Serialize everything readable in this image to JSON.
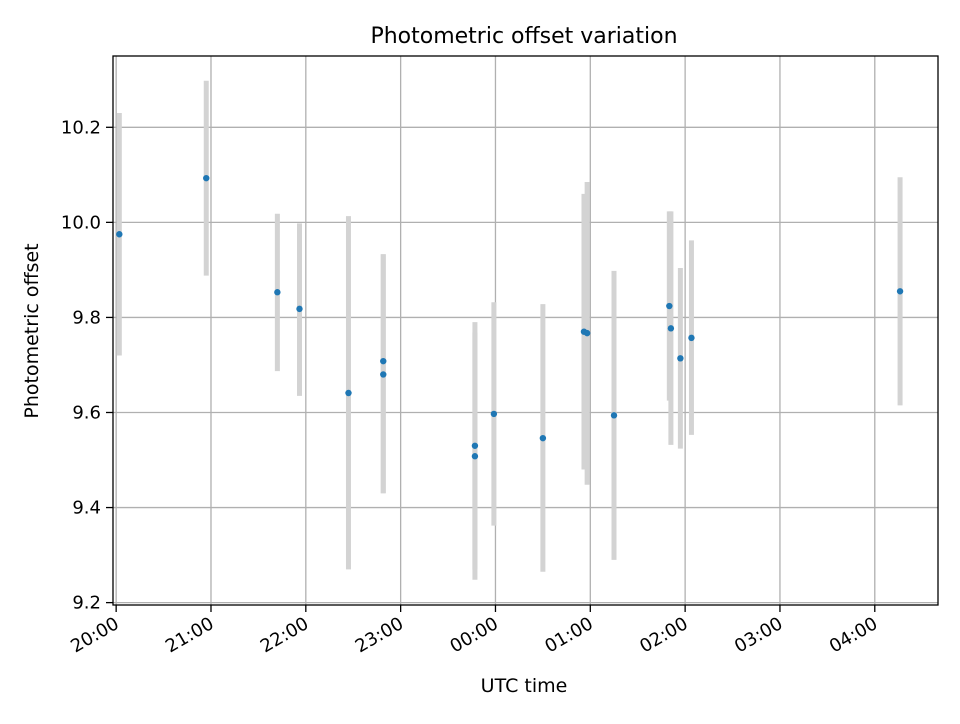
{
  "chart_data": {
    "type": "scatter",
    "title": "Photometric offset variation",
    "xlabel": "UTC time",
    "ylabel": "Photometric offset",
    "x_tick_labels": [
      "20:00",
      "21:00",
      "22:00",
      "23:00",
      "00:00",
      "01:00",
      "02:00",
      "03:00",
      "04:00"
    ],
    "y_tick_labels": [
      "9.2",
      "9.4",
      "9.6",
      "9.8",
      "10.0",
      "10.2"
    ],
    "xlim": [
      "19:58",
      "04:40"
    ],
    "ylim": [
      9.195,
      10.35
    ],
    "grid": true,
    "colors": {
      "point": "#1f77b4",
      "errorbar": "#d3d3d3",
      "grid": "#b0b0b0"
    },
    "points": [
      {
        "x": "20:02",
        "y": 9.975,
        "yerr_low": 9.72,
        "yerr_high": 10.23
      },
      {
        "x": "20:57",
        "y": 10.093,
        "yerr_low": 9.888,
        "yerr_high": 10.298
      },
      {
        "x": "21:42",
        "y": 9.853,
        "yerr_low": 9.687,
        "yerr_high": 10.018
      },
      {
        "x": "21:56",
        "y": 9.818,
        "yerr_low": 9.635,
        "yerr_high": 9.998
      },
      {
        "x": "22:27",
        "y": 9.641,
        "yerr_low": 9.27,
        "yerr_high": 10.013
      },
      {
        "x": "22:49",
        "y": 9.708,
        "yerr_low": 9.43,
        "yerr_high": 9.933
      },
      {
        "x": "22:49",
        "y": 9.68,
        "yerr_low": 9.43,
        "yerr_high": 9.933
      },
      {
        "x": "23:47",
        "y": 9.53,
        "yerr_low": 9.27,
        "yerr_high": 9.79
      },
      {
        "x": "23:47",
        "y": 9.508,
        "yerr_low": 9.248,
        "yerr_high": 9.768
      },
      {
        "x": "23:59",
        "y": 9.597,
        "yerr_low": 9.362,
        "yerr_high": 9.832
      },
      {
        "x": "00:30",
        "y": 9.546,
        "yerr_low": 9.265,
        "yerr_high": 9.828
      },
      {
        "x": "00:56",
        "y": 9.77,
        "yerr_low": 9.48,
        "yerr_high": 10.06
      },
      {
        "x": "00:58",
        "y": 9.767,
        "yerr_low": 9.448,
        "yerr_high": 10.085
      },
      {
        "x": "01:15",
        "y": 9.594,
        "yerr_low": 9.29,
        "yerr_high": 9.898
      },
      {
        "x": "01:50",
        "y": 9.824,
        "yerr_low": 9.625,
        "yerr_high": 10.023
      },
      {
        "x": "01:51",
        "y": 9.777,
        "yerr_low": 9.532,
        "yerr_high": 10.023
      },
      {
        "x": "01:57",
        "y": 9.714,
        "yerr_low": 9.524,
        "yerr_high": 9.904
      },
      {
        "x": "02:04",
        "y": 9.757,
        "yerr_low": 9.553,
        "yerr_high": 9.962
      },
      {
        "x": "04:16",
        "y": 9.855,
        "yerr_low": 9.615,
        "yerr_high": 10.095
      }
    ]
  }
}
